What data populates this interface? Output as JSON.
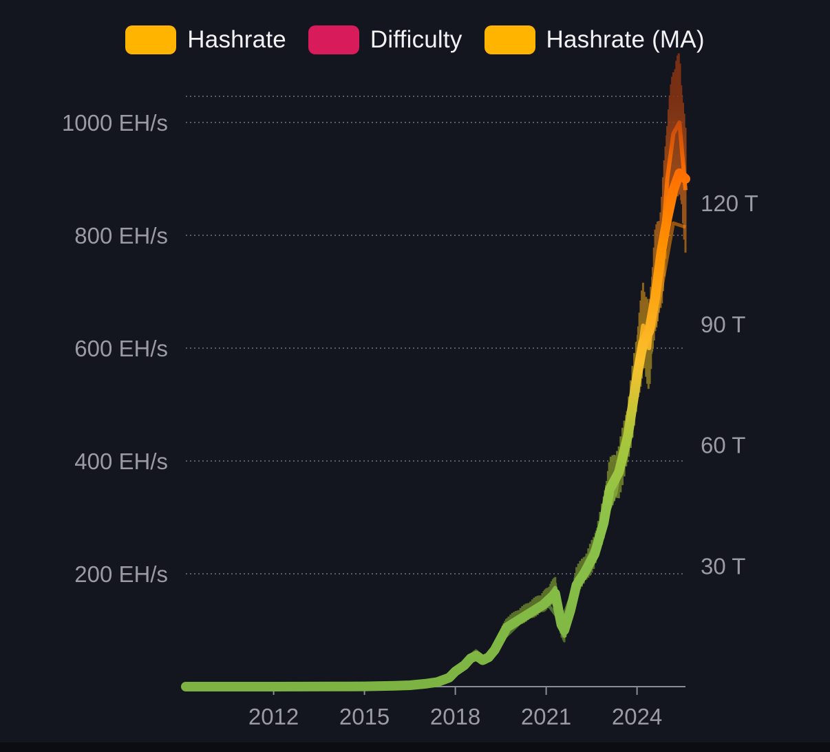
{
  "legend": {
    "items": [
      {
        "label": "Hashrate",
        "color": "#ffb400"
      },
      {
        "label": "Difficulty",
        "color": "#d81b5a"
      },
      {
        "label": "Hashrate (MA)",
        "color": "#ffb400"
      }
    ]
  },
  "chart_data": {
    "type": "line",
    "title": "",
    "xlabel": "",
    "ylabel": "",
    "x_ticks": [
      "2012",
      "2015",
      "2018",
      "2021",
      "2024"
    ],
    "y_left_ticks": [
      "200 EH/s",
      "400 EH/s",
      "600 EH/s",
      "800 EH/s",
      "1000 EH/s"
    ],
    "y_right_ticks": [
      "30 T",
      "60 T",
      "90 T",
      "120 T"
    ],
    "x_range": [
      2009.1,
      2025.6
    ],
    "ylim_left": [
      0,
      1000
    ],
    "ylim_right": [
      0,
      120
    ],
    "grid": "horizontal-dotted",
    "legend_position": "top-center",
    "colors": {
      "low": "#7cb342",
      "mid": "#fbc02d",
      "high": "#ff6d00",
      "peak": "#b23a0e",
      "grid": "#5a5e6a",
      "axis": "#8a8e98",
      "tick_text": "#9a9ba3"
    },
    "series": [
      {
        "name": "Hashrate",
        "x": [
          2009.1,
          2010,
          2011,
          2012,
          2013,
          2014,
          2015,
          2016,
          2016.5,
          2017,
          2017.4,
          2017.8,
          2018,
          2018.3,
          2018.5,
          2018.7,
          2018.9,
          2019.1,
          2019.3,
          2019.5,
          2019.7,
          2020,
          2020.3,
          2020.6,
          2020.9,
          2021.1,
          2021.3,
          2021.5,
          2021.6,
          2021.8,
          2022,
          2022.3,
          2022.6,
          2022.9,
          2023.1,
          2023.4,
          2023.7,
          2024,
          2024.2,
          2024.4,
          2024.6,
          2024.8,
          2025.0,
          2025.2,
          2025.4,
          2025.6
        ],
        "values": [
          0,
          0,
          0,
          0,
          0.1,
          0.3,
          0.5,
          1.5,
          2.5,
          5,
          8,
          16,
          28,
          40,
          52,
          60,
          45,
          55,
          70,
          90,
          110,
          120,
          130,
          140,
          150,
          160,
          175,
          100,
          90,
          140,
          190,
          210,
          240,
          300,
          360,
          380,
          450,
          560,
          640,
          600,
          720,
          760,
          900,
          980,
          1000,
          880
        ]
      },
      {
        "name": "Difficulty",
        "x": [
          2009.1,
          2011,
          2013,
          2015,
          2016.5,
          2017.5,
          2018,
          2018.5,
          2019,
          2019.6,
          2020.3,
          2021,
          2021.5,
          2022,
          2022.6,
          2023.3,
          2024,
          2024.6,
          2025.2,
          2025.6
        ],
        "values": [
          0,
          0,
          0.02,
          0.07,
          0.3,
          1.5,
          4,
          7,
          6,
          12,
          17,
          21,
          16,
          26,
          35,
          48,
          78,
          90,
          115,
          114
        ]
      },
      {
        "name": "Hashrate (MA)",
        "x": [
          2009.1,
          2010,
          2011,
          2012,
          2013,
          2014,
          2015,
          2016,
          2016.5,
          2017,
          2017.4,
          2017.8,
          2018,
          2018.3,
          2018.5,
          2018.7,
          2018.9,
          2019.1,
          2019.3,
          2019.5,
          2019.7,
          2020,
          2020.3,
          2020.6,
          2020.9,
          2021.1,
          2021.3,
          2021.5,
          2021.6,
          2021.8,
          2022,
          2022.3,
          2022.6,
          2022.9,
          2023.1,
          2023.4,
          2023.7,
          2024,
          2024.2,
          2024.4,
          2024.6,
          2024.8,
          2025.0,
          2025.2,
          2025.4,
          2025.6
        ],
        "values": [
          0,
          0,
          0,
          0,
          0.1,
          0.3,
          0.5,
          1.5,
          2.5,
          5,
          8,
          16,
          27,
          38,
          50,
          55,
          47,
          52,
          65,
          85,
          105,
          115,
          125,
          135,
          145,
          155,
          165,
          110,
          100,
          135,
          180,
          205,
          235,
          290,
          350,
          380,
          445,
          550,
          610,
          630,
          690,
          770,
          830,
          880,
          910,
          900
        ]
      }
    ]
  }
}
